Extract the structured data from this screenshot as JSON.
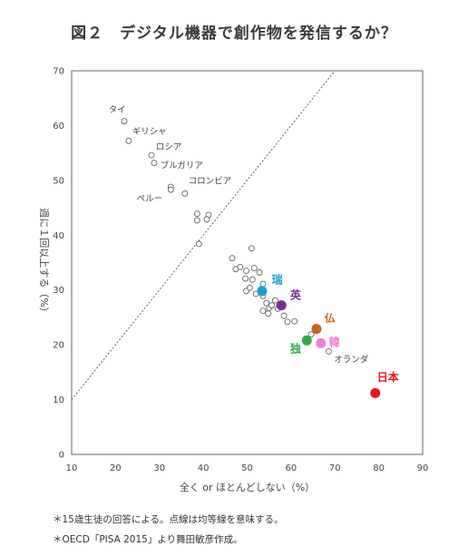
{
  "title": "図２　デジタル機器で創作物を発信するか？",
  "notes": [
    "＊15歳生徒の回答による。点線は均等線を意味する。",
    "＊OECD「PISA 2015」より舞田敏彦作成。"
  ],
  "chart_data": {
    "type": "scatter",
    "xlabel": "全く or ほとんどしない（%）",
    "ylabel": "週に１回以上する（%）",
    "xlim": [
      10,
      90
    ],
    "ylim": [
      0,
      70
    ],
    "xticks": [
      10,
      20,
      30,
      40,
      50,
      60,
      70,
      80,
      90
    ],
    "yticks": [
      0,
      10,
      20,
      30,
      40,
      50,
      60,
      70
    ],
    "grid": false,
    "reference_line": {
      "style": "dotted",
      "points": [
        [
          10,
          10
        ],
        [
          70,
          70
        ]
      ]
    },
    "points": [
      {
        "x": 22.0,
        "y": 60.8
      },
      {
        "x": 23.0,
        "y": 57.2
      },
      {
        "x": 28.2,
        "y": 54.6
      },
      {
        "x": 28.8,
        "y": 53.2
      },
      {
        "x": 32.6,
        "y": 48.8
      },
      {
        "x": 32.6,
        "y": 48.3
      },
      {
        "x": 35.8,
        "y": 47.6
      },
      {
        "x": 38.6,
        "y": 43.9
      },
      {
        "x": 38.6,
        "y": 42.7
      },
      {
        "x": 41.2,
        "y": 43.7
      },
      {
        "x": 40.8,
        "y": 42.9
      },
      {
        "x": 39.0,
        "y": 38.4
      },
      {
        "x": 46.6,
        "y": 35.8
      },
      {
        "x": 51.0,
        "y": 37.6
      },
      {
        "x": 47.4,
        "y": 33.8
      },
      {
        "x": 48.4,
        "y": 34.2
      },
      {
        "x": 49.8,
        "y": 33.5
      },
      {
        "x": 51.6,
        "y": 34.0
      },
      {
        "x": 52.8,
        "y": 33.2
      },
      {
        "x": 49.6,
        "y": 32.1
      },
      {
        "x": 51.2,
        "y": 31.9
      },
      {
        "x": 53.6,
        "y": 31.1
      },
      {
        "x": 49.8,
        "y": 29.8
      },
      {
        "x": 50.6,
        "y": 30.4
      },
      {
        "x": 52.0,
        "y": 29.3
      },
      {
        "x": 53.6,
        "y": 28.9
      },
      {
        "x": 54.4,
        "y": 27.6
      },
      {
        "x": 55.0,
        "y": 26.7
      },
      {
        "x": 55.6,
        "y": 27.2
      },
      {
        "x": 56.4,
        "y": 28.1
      },
      {
        "x": 53.6,
        "y": 26.2
      },
      {
        "x": 54.8,
        "y": 25.7
      },
      {
        "x": 57.0,
        "y": 26.6
      },
      {
        "x": 58.4,
        "y": 25.3
      },
      {
        "x": 59.2,
        "y": 24.2
      },
      {
        "x": 60.8,
        "y": 24.3
      },
      {
        "x": 64.6,
        "y": 21.9
      },
      {
        "x": 68.6,
        "y": 18.8
      }
    ],
    "point_labels": [
      {
        "text": "タイ",
        "x": 18.4,
        "y": 62.4
      },
      {
        "text": "ギリシャ",
        "x": 23.8,
        "y": 58.4
      },
      {
        "text": "ロシア",
        "x": 29.2,
        "y": 55.6
      },
      {
        "text": "ブルガリア",
        "x": 30.2,
        "y": 52.2
      },
      {
        "text": "コロンビア",
        "x": 36.6,
        "y": 49.4
      },
      {
        "text": "ペルー",
        "x": 24.8,
        "y": 46.2
      },
      {
        "text": "オランダ",
        "x": 69.8,
        "y": 16.8
      }
    ],
    "highlights": [
      {
        "label": "瑞",
        "x": 53.4,
        "y": 29.8,
        "color": "#1e9bd7",
        "label_x": 55.6,
        "label_y": 31.2
      },
      {
        "label": "英",
        "x": 57.8,
        "y": 27.2,
        "color": "#7a2e98",
        "label_x": 59.8,
        "label_y": 28.4
      },
      {
        "label": "仏",
        "x": 65.8,
        "y": 22.9,
        "color": "#c5661b",
        "label_x": 67.6,
        "label_y": 24.2
      },
      {
        "label": "韓",
        "x": 66.8,
        "y": 20.3,
        "color": "#f07ed6",
        "label_x": 68.6,
        "label_y": 19.8
      },
      {
        "label": "独",
        "x": 63.6,
        "y": 20.8,
        "color": "#2eaa4b",
        "label_x": 59.8,
        "label_y": 18.6
      },
      {
        "label": "日本",
        "x": 79.2,
        "y": 11.2,
        "color": "#e8141d",
        "label_x": 79.6,
        "label_y": 13.4
      }
    ]
  }
}
